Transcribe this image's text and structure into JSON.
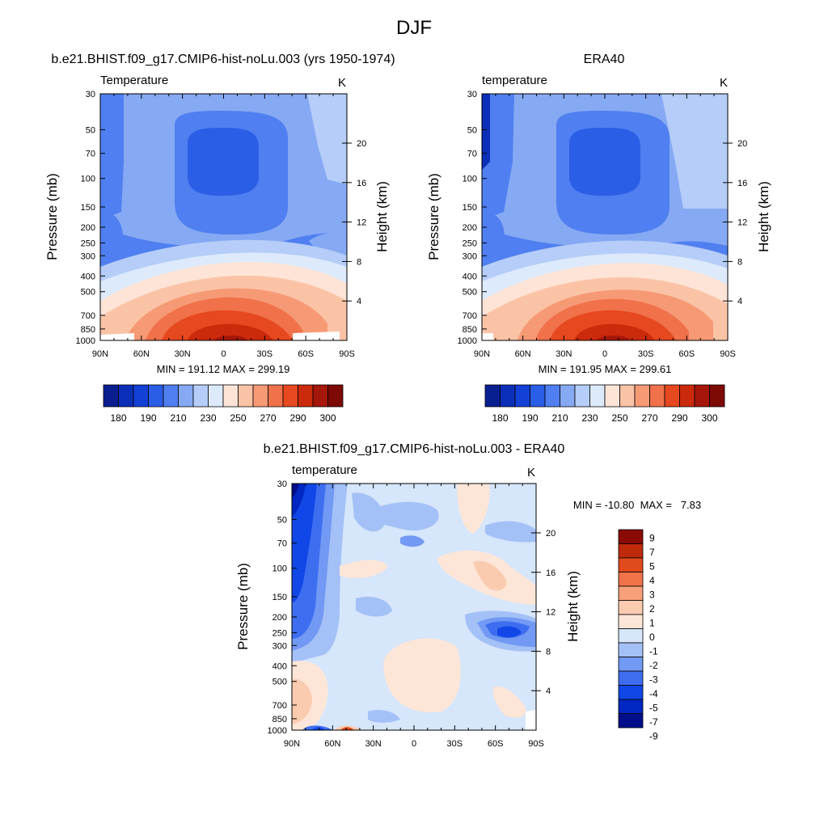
{
  "figure_title": "DJF",
  "colors": {
    "temp_palette": [
      "#0a1f8f",
      "#0b2fb8",
      "#1340d6",
      "#2a5ee6",
      "#4f7ff0",
      "#86a9f4",
      "#b5cdf8",
      "#ddeafc",
      "#fde4d6",
      "#fbc3a6",
      "#f69a75",
      "#f0714a",
      "#e6481f",
      "#cc2a0c",
      "#a5170a",
      "#7d0a05"
    ],
    "diff_palette": [
      "#000e8a",
      "#0027c2",
      "#1147e6",
      "#3e6ef0",
      "#7299f3",
      "#a4c1f7",
      "#d6e6fb",
      "#fde6d8",
      "#fbcbb0",
      "#f7a07a",
      "#f0734a",
      "#e14a1c",
      "#bf2a0c",
      "#8a0a05"
    ]
  },
  "chart_data": [
    {
      "type": "contour",
      "title_center": "b.e21.BHIST.f09_g17.CMIP6-hist-noLu.003 (yrs 1950-1974)",
      "title_left": "Temperature",
      "title_right": "K",
      "ylabel": "Pressure (mb)",
      "y2label": "Height (km)",
      "x_ticks": [
        "90N",
        "60N",
        "30N",
        "0",
        "30S",
        "60S",
        "90S"
      ],
      "y_ticks": [
        "30",
        "50",
        "70",
        "100",
        "150",
        "200",
        "250",
        "300",
        "400",
        "500",
        "700",
        "850",
        "1000"
      ],
      "y_tick_values": [
        30,
        50,
        70,
        100,
        150,
        200,
        250,
        300,
        400,
        500,
        700,
        850,
        1000
      ],
      "y2_ticks": [
        "20",
        "16",
        "12",
        "8",
        "4"
      ],
      "y2_tick_values": [
        20,
        16,
        12,
        8,
        4
      ],
      "ylim": [
        30,
        1000
      ],
      "stats": "MIN = 191.12  MAX = 299.19",
      "colorbar_labels": [
        "180",
        "190",
        "210",
        "230",
        "250",
        "270",
        "290",
        "300"
      ]
    },
    {
      "type": "contour",
      "title_center": "ERA40",
      "title_left": "temperature",
      "title_right": "K",
      "ylabel": "Pressure (mb)",
      "y2label": "Height (km)",
      "x_ticks": [
        "90N",
        "60N",
        "30N",
        "0",
        "30S",
        "60S",
        "90S"
      ],
      "y_ticks": [
        "30",
        "50",
        "70",
        "100",
        "150",
        "200",
        "250",
        "300",
        "400",
        "500",
        "700",
        "850",
        "1000"
      ],
      "y_tick_values": [
        30,
        50,
        70,
        100,
        150,
        200,
        250,
        300,
        400,
        500,
        700,
        850,
        1000
      ],
      "y2_ticks": [
        "20",
        "16",
        "12",
        "8",
        "4"
      ],
      "y2_tick_values": [
        20,
        16,
        12,
        8,
        4
      ],
      "ylim": [
        30,
        1000
      ],
      "stats": "MIN = 191.95  MAX = 299.61",
      "colorbar_labels": [
        "180",
        "190",
        "210",
        "230",
        "250",
        "270",
        "290",
        "300"
      ]
    },
    {
      "type": "contour",
      "title_center": "b.e21.BHIST.f09_g17.CMIP6-hist-noLu.003 - ERA40",
      "title_left": "temperature",
      "title_right": "K",
      "ylabel": "Pressure (mb)",
      "y2label": "Height (km)",
      "x_ticks": [
        "90N",
        "60N",
        "30N",
        "0",
        "30S",
        "60S",
        "90S"
      ],
      "y_ticks": [
        "30",
        "50",
        "70",
        "100",
        "150",
        "200",
        "250",
        "300",
        "400",
        "500",
        "700",
        "850",
        "1000"
      ],
      "y_tick_values": [
        30,
        50,
        70,
        100,
        150,
        200,
        250,
        300,
        400,
        500,
        700,
        850,
        1000
      ],
      "y2_ticks": [
        "20",
        "16",
        "12",
        "8",
        "4"
      ],
      "y2_tick_values": [
        20,
        16,
        12,
        8,
        4
      ],
      "ylim": [
        30,
        1000
      ],
      "stats": "MIN = -10.80  MAX =   7.83",
      "colorbar_labels": [
        "9",
        "7",
        "5",
        "4",
        "3",
        "2",
        "1",
        "0",
        "-1",
        "-2",
        "-3",
        "-4",
        "-5",
        "-7",
        "-9"
      ]
    }
  ]
}
